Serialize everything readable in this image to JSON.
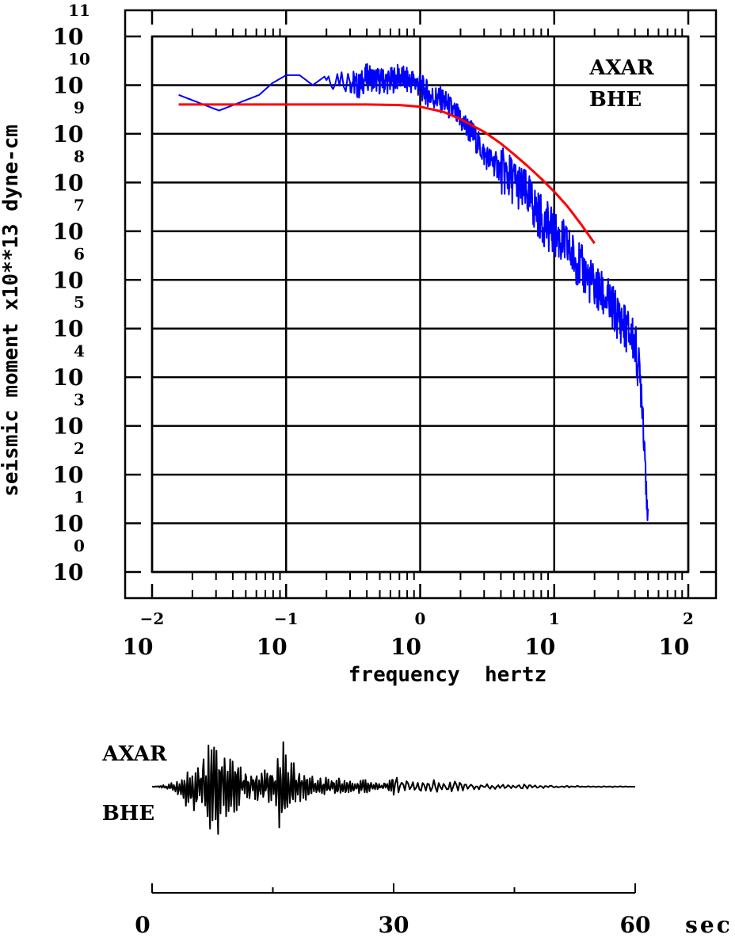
{
  "chart_data": [
    {
      "type": "line",
      "title": "",
      "xlabel": "frequency  hertz",
      "ylabel": "seismic moment x10**13 dyne-cm",
      "x_scale": "log",
      "y_scale": "log",
      "xlim": [
        0.01,
        100
      ],
      "ylim": [
        1,
        100000000000
      ],
      "grid": true,
      "annotation_lines": [
        "AXAR",
        "BHE"
      ],
      "x_ticks": [
        {
          "base": "10",
          "exp": "−2"
        },
        {
          "base": "10",
          "exp": "−1"
        },
        {
          "base": "10",
          "exp": "0"
        },
        {
          "base": "10",
          "exp": "1"
        },
        {
          "base": "10",
          "exp": "2"
        }
      ],
      "y_ticks": [
        {
          "base": "10",
          "exp": "0"
        },
        {
          "base": "10",
          "exp": "1"
        },
        {
          "base": "10",
          "exp": "2"
        },
        {
          "base": "10",
          "exp": "3"
        },
        {
          "base": "10",
          "exp": "4"
        },
        {
          "base": "10",
          "exp": "5"
        },
        {
          "base": "10",
          "exp": "6"
        },
        {
          "base": "10",
          "exp": "7"
        },
        {
          "base": "10",
          "exp": "8"
        },
        {
          "base": "10",
          "exp": "9"
        },
        {
          "base": "10",
          "exp": "10"
        },
        {
          "base": "10",
          "exp": "11"
        }
      ],
      "series": [
        {
          "color": "#0000ff",
          "style": "jagged spectrum",
          "x": [
            0.0158,
            0.0316,
            0.063,
            0.079,
            0.1,
            0.126,
            0.158,
            0.2,
            0.25,
            0.3,
            0.35,
            0.4,
            0.5,
            0.6,
            0.7,
            0.8,
            0.9,
            1.0,
            1.2,
            1.5,
            2.0,
            2.5,
            3.0,
            4.0,
            5.0,
            6.3,
            8.0,
            10.0,
            12.6,
            15.8,
            20.0,
            25.1,
            31.6,
            39.8,
            45.0,
            50.0
          ],
          "y": [
            6300000000.0,
            3000000000.0,
            6300000000.0,
            11000000000.0,
            16000000000.0,
            16000000000.0,
            10000000000.0,
            16000000000.0,
            16000000000.0,
            13000000000.0,
            10000000000.0,
            16000000000.0,
            13000000000.0,
            13000000000.0,
            16000000000.0,
            13000000000.0,
            13000000000.0,
            10000000000.0,
            6300000000.0,
            5000000000.0,
            2000000000.0,
            1000000000.0,
            400000000.0,
            200000000.0,
            120000000.0,
            60000000.0,
            20000000.0,
            10000000.0,
            5000000.0,
            2000000.0,
            800000.0,
            400000.0,
            160000.0,
            60000.0,
            6000.0,
            20
          ]
        },
        {
          "color": "#ff0000",
          "style": "smooth model fit",
          "x": [
            0.0158,
            0.03,
            0.06,
            0.1,
            0.2,
            0.4,
            0.7,
            1.0,
            1.5,
            2.0,
            3.0,
            4.0,
            5.0,
            6.3,
            8.0,
            10.0,
            12.6,
            15.8,
            20.0
          ],
          "y": [
            4000000000.0,
            4000000000.0,
            4000000000.0,
            4000000000.0,
            4000000000.0,
            4000000000.0,
            3900000000.0,
            3600000000.0,
            2800000000.0,
            2000000000.0,
            1100000000.0,
            630000000.0,
            380000000.0,
            220000000.0,
            120000000.0,
            65000000.0,
            32000000.0,
            14000000.0,
            5600000.0
          ]
        }
      ]
    },
    {
      "type": "line",
      "title": "",
      "xlabel": "sec",
      "annotation_lines": [
        "AXAR",
        "BHE"
      ],
      "xlim": [
        0,
        60
      ],
      "x_ticks": [
        "0",
        "30",
        "60"
      ],
      "unit": "sec",
      "series": [
        {
          "color": "#000000",
          "style": "seismogram trace",
          "x": [
            0,
            1,
            2,
            3,
            4,
            5,
            6,
            7,
            8,
            9,
            10,
            11,
            12,
            13,
            14,
            15,
            16,
            17,
            18,
            19,
            20,
            21,
            22,
            23,
            24,
            25,
            26,
            27,
            28,
            29,
            30,
            32,
            34,
            36,
            38,
            40,
            42,
            44,
            46,
            48,
            50,
            52,
            54,
            56,
            58,
            60
          ],
          "y": [
            0,
            0.02,
            0.05,
            -0.1,
            0.3,
            -0.5,
            0.6,
            -0.8,
            0.9,
            -0.6,
            0.5,
            -0.4,
            0.3,
            -0.3,
            0.4,
            -0.3,
            0.9,
            -0.5,
            0.4,
            -0.3,
            0.2,
            -0.2,
            0.15,
            -0.15,
            0.2,
            -0.1,
            0.15,
            -0.12,
            0.1,
            -0.08,
            0.2,
            -0.1,
            0.1,
            -0.15,
            0.1,
            -0.05,
            0.05,
            -0.04,
            0.05,
            -0.03,
            0.02,
            -0.02,
            0.01,
            -0.01,
            0.01,
            0
          ]
        }
      ]
    }
  ]
}
